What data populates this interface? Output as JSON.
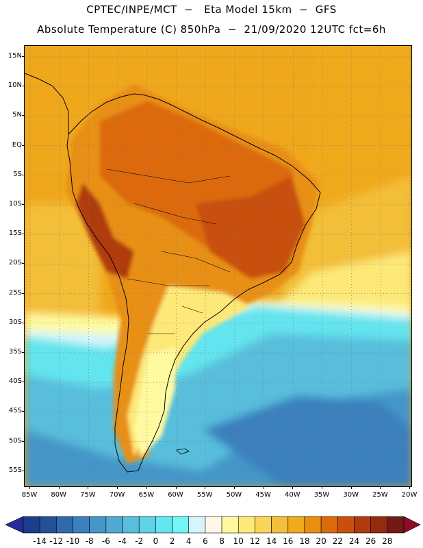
{
  "header": {
    "line1": "CPTEC/INPE/MCT  −   Eta Model 15km  −  GFS",
    "line2": "Absolute Temperature (C) 850hPa  −  21/09/2020 12UTC fct=6h"
  },
  "map": {
    "lat_labels": [
      "15N",
      "10N",
      "5N",
      "EQ",
      "5S",
      "10S",
      "15S",
      "20S",
      "25S",
      "30S",
      "35S",
      "40S",
      "45S",
      "50S",
      "55S"
    ],
    "lon_labels": [
      "85W",
      "80W",
      "75W",
      "70W",
      "65W",
      "60W",
      "55W",
      "50W",
      "45W",
      "40W",
      "35W",
      "30W",
      "25W",
      "20W"
    ],
    "lat_range": [
      -58,
      16
    ],
    "lon_range": [
      -86,
      -19
    ],
    "gridlines": "dotted"
  },
  "colorbar": {
    "levels": [
      "-14",
      "-12",
      "-10",
      "-8",
      "-6",
      "-4",
      "-2",
      "0",
      "2",
      "4",
      "6",
      "8",
      "10",
      "12",
      "14",
      "16",
      "18",
      "20",
      "22",
      "24",
      "26",
      "28"
    ],
    "colors": [
      "#1c3d8c",
      "#24509a",
      "#2f6aad",
      "#3a80bd",
      "#4596c8",
      "#4fa9d2",
      "#58bedc",
      "#5fd2e6",
      "#63e4ee",
      "#72f5f5",
      "#d5f5fa",
      "#fff8e6",
      "#fffaa0",
      "#fde878",
      "#f8d458",
      "#f3be38",
      "#efaa1e",
      "#e88f12",
      "#dc6a0c",
      "#c8500c",
      "#b03a0c",
      "#962a0e",
      "#721a14"
    ],
    "under_color": "#2a2a9a",
    "over_color": "#8c0a2a",
    "unit": "C"
  }
}
